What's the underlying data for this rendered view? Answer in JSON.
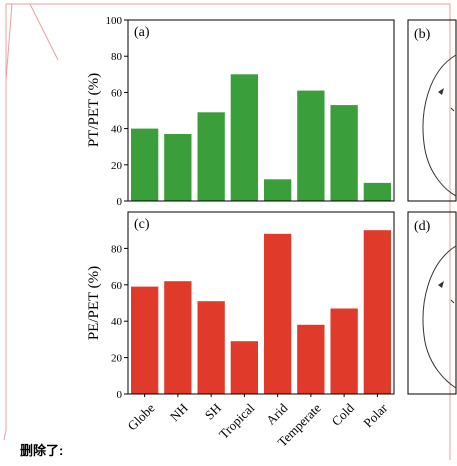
{
  "note_label": "删除了:",
  "colors": {
    "green": "#3a9e3a",
    "red": "#e03a2a",
    "frame": "#e8a0a0",
    "axis": "#000000"
  },
  "chart_data": [
    {
      "type": "bar",
      "panel_label": "(a)",
      "ylabel": "PT/PET (%)",
      "ylim": [
        0,
        100
      ],
      "yticks": [
        "0",
        "20",
        "40",
        "60",
        "80",
        "100"
      ],
      "categories": [
        "Globe",
        "NH",
        "SH",
        "Tropical",
        "Arid",
        "Temperate",
        "Cold",
        "Polar"
      ],
      "values": [
        40,
        37,
        49,
        70,
        12,
        61,
        53,
        10
      ],
      "color": "#3a9e3a"
    },
    {
      "type": "bar",
      "panel_label": "(c)",
      "ylabel": "PE/PET (%)",
      "ylim": [
        0,
        100
      ],
      "yticks": [
        "0",
        "20",
        "40",
        "60",
        "80"
      ],
      "categories": [
        "Globe",
        "NH",
        "SH",
        "Tropical",
        "Arid",
        "Temperate",
        "Cold",
        "Polar"
      ],
      "values": [
        59,
        62,
        51,
        29,
        88,
        38,
        47,
        90
      ],
      "color": "#e03a2a"
    }
  ],
  "side_panels": [
    {
      "label": "(b)"
    },
    {
      "label": "(d)"
    }
  ]
}
